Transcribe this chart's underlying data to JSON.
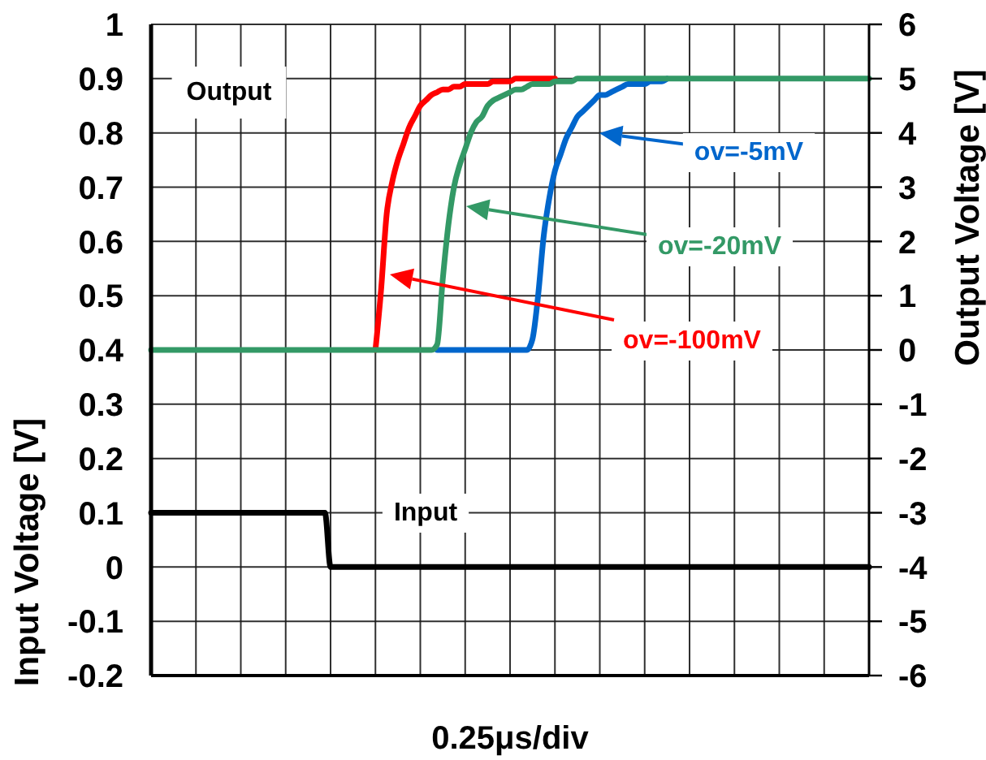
{
  "chart_data": {
    "type": "line",
    "xlabel": "0.25μs/div",
    "ylabel": "Input Voltage [V]",
    "y2label": "Output Voltage [V]",
    "annotations": [
      "Output"
    ],
    "categories": [
      null,
      null,
      null,
      null,
      null,
      null,
      null,
      null,
      null,
      null,
      null,
      null,
      null,
      null,
      null,
      null,
      null,
      null,
      null,
      null,
      null,
      null,
      null,
      null,
      null,
      null,
      null,
      null,
      null,
      null,
      null,
      null,
      null,
      null,
      null,
      null,
      null,
      null,
      null,
      null,
      null,
      null,
      null,
      null,
      null,
      null,
      null,
      null,
      null,
      null,
      null,
      null,
      null,
      null,
      null,
      null,
      null,
      null,
      null,
      null,
      null,
      null,
      null,
      null,
      null,
      null,
      null,
      null,
      null,
      null,
      null,
      null,
      null,
      null,
      null,
      null,
      null,
      null,
      null,
      null,
      null,
      null,
      null,
      null,
      null,
      null,
      null,
      null,
      null,
      null,
      null,
      null,
      null,
      null,
      null,
      null,
      null,
      null,
      null,
      null,
      null,
      null,
      null,
      null,
      null,
      null,
      null,
      null,
      null,
      null,
      null,
      null,
      null,
      null,
      null,
      null,
      null,
      null,
      null,
      null,
      null,
      null,
      null,
      null,
      null,
      null,
      null,
      null,
      null
    ],
    "ylim": [
      -0.2,
      1
    ],
    "yticks": [
      -0.2,
      -0.1,
      0,
      0.1,
      0.2,
      0.3,
      0.4,
      0.5,
      0.6,
      0.7,
      0.8,
      0.9,
      1
    ],
    "y2lim": [
      -6,
      6
    ],
    "y2ticks": [
      -6,
      -5,
      -4,
      -3,
      -2,
      -1,
      0,
      1,
      2,
      3,
      4,
      5,
      6
    ],
    "grid": true,
    "marker": "none",
    "line_style": "solid",
    "series": [
      {
        "name": "Input",
        "color": "#000000",
        "values": [
          0.1,
          0.1,
          0.1,
          0.1,
          0.1,
          0.1,
          0.1,
          0.1,
          0.1,
          0.1,
          0.1,
          0.1,
          0.1,
          0.1,
          0.1,
          0.1,
          0.1,
          0.1,
          0.1,
          0.1,
          0.1,
          0.1,
          0.1,
          0.1,
          0.1,
          0.1,
          0.1,
          0.1,
          0.1,
          0.1,
          0.1,
          0.1,
          0,
          0,
          0,
          0,
          0,
          0,
          0,
          0,
          0,
          0,
          0,
          0,
          0,
          0,
          0,
          0,
          0,
          0,
          0,
          0,
          0,
          0,
          0,
          0,
          0,
          0,
          0,
          0,
          0,
          0,
          0,
          0,
          0,
          0,
          0,
          0,
          0,
          0,
          0,
          0,
          0,
          0,
          0,
          0,
          0,
          0,
          0,
          0,
          0,
          0,
          0,
          0,
          0,
          0,
          0,
          0,
          0,
          0,
          0,
          0,
          0,
          0,
          0,
          0,
          0,
          0,
          0,
          0,
          0,
          0,
          0,
          0,
          0,
          0,
          0,
          0,
          0,
          0,
          0,
          0,
          0,
          0,
          0,
          0,
          0,
          0,
          0,
          0,
          0,
          0,
          0,
          0,
          0,
          0,
          0,
          0,
          0
        ]
      },
      {
        "name": "ov=-5mV",
        "color": "#0066cc",
        "axis": "y2",
        "values": [
          null,
          null,
          null,
          null,
          null,
          null,
          null,
          null,
          null,
          null,
          null,
          null,
          null,
          null,
          null,
          null,
          null,
          null,
          null,
          null,
          null,
          null,
          null,
          null,
          null,
          null,
          null,
          null,
          null,
          null,
          null,
          null,
          null,
          null,
          null,
          null,
          null,
          null,
          null,
          null,
          null,
          null,
          null,
          null,
          null,
          null,
          null,
          null,
          null,
          null,
          null,
          0,
          0,
          0,
          0,
          0,
          0,
          0,
          0,
          0,
          0,
          0,
          0,
          0,
          0,
          0,
          0,
          0,
          0.2,
          1.0,
          2.1,
          2.8,
          3.3,
          3.6,
          3.9,
          4.1,
          4.3,
          4.4,
          4.5,
          4.6,
          4.7,
          4.7,
          4.75,
          4.8,
          4.85,
          4.9,
          4.9,
          4.9,
          4.9,
          4.95,
          4.95,
          4.95,
          5,
          null,
          null,
          null,
          null,
          null,
          null,
          null,
          null,
          null,
          null,
          null,
          null,
          null,
          null,
          null,
          null,
          null,
          null,
          null,
          null,
          null,
          null,
          null,
          null,
          null,
          null,
          null,
          null,
          null,
          null,
          null,
          null,
          null,
          null,
          null,
          null
        ]
      },
      {
        "name": "ov=-100mV",
        "color": "#ff0000",
        "axis": "y2",
        "values": [
          null,
          null,
          null,
          null,
          null,
          null,
          null,
          null,
          null,
          null,
          null,
          null,
          null,
          null,
          null,
          null,
          null,
          null,
          null,
          null,
          null,
          null,
          null,
          null,
          null,
          null,
          null,
          null,
          null,
          null,
          null,
          null,
          null,
          null,
          null,
          null,
          null,
          null,
          null,
          null,
          0,
          1.1,
          2.5,
          3.1,
          3.5,
          3.8,
          4.1,
          4.3,
          4.5,
          4.6,
          4.7,
          4.75,
          4.8,
          4.8,
          4.85,
          4.85,
          4.9,
          4.9,
          4.9,
          4.9,
          4.9,
          4.95,
          4.95,
          4.95,
          4.95,
          5,
          5,
          5,
          5,
          5,
          5,
          5,
          5,
          null,
          null,
          null,
          null,
          null,
          null,
          null,
          null,
          null,
          null,
          null,
          null,
          null,
          null,
          null,
          null,
          null,
          null,
          null,
          null,
          null,
          null,
          null,
          null,
          null,
          null,
          null,
          null,
          null,
          null,
          null,
          null,
          null,
          null,
          null,
          null,
          null,
          null,
          null,
          null,
          null,
          null,
          null,
          null,
          null,
          null,
          null,
          null,
          null,
          null,
          null,
          null,
          null,
          null,
          null,
          null
        ]
      },
      {
        "name": "ov=-20mV",
        "color": "#339966",
        "axis": "y2",
        "values": [
          0,
          0,
          0,
          0,
          0,
          0,
          0,
          0,
          0,
          0,
          0,
          0,
          0,
          0,
          0,
          0,
          0,
          0,
          0,
          0,
          0,
          0,
          0,
          0,
          0,
          0,
          0,
          0,
          0,
          0,
          0,
          0,
          0,
          0,
          0,
          0,
          0,
          0,
          0,
          0,
          0,
          0,
          0,
          0,
          0,
          0,
          0,
          0,
          0,
          0,
          0,
          0.1,
          1.3,
          2.3,
          3.0,
          3.4,
          3.7,
          4.0,
          4.2,
          4.3,
          4.5,
          4.6,
          4.65,
          4.7,
          4.75,
          4.8,
          4.8,
          4.85,
          4.9,
          4.9,
          4.9,
          4.9,
          4.95,
          4.95,
          4.95,
          4.95,
          5,
          5,
          5,
          5,
          5,
          5,
          5,
          5,
          5,
          5,
          5,
          5,
          5,
          5,
          5,
          5,
          5,
          5,
          5,
          5,
          5,
          5,
          5,
          5,
          5,
          5,
          5,
          5,
          5,
          5,
          5,
          5,
          5,
          5,
          5,
          5,
          5,
          5,
          5,
          5,
          5,
          5,
          5,
          5,
          5,
          5,
          5,
          5,
          5,
          5,
          5,
          5,
          5
        ]
      }
    ]
  }
}
